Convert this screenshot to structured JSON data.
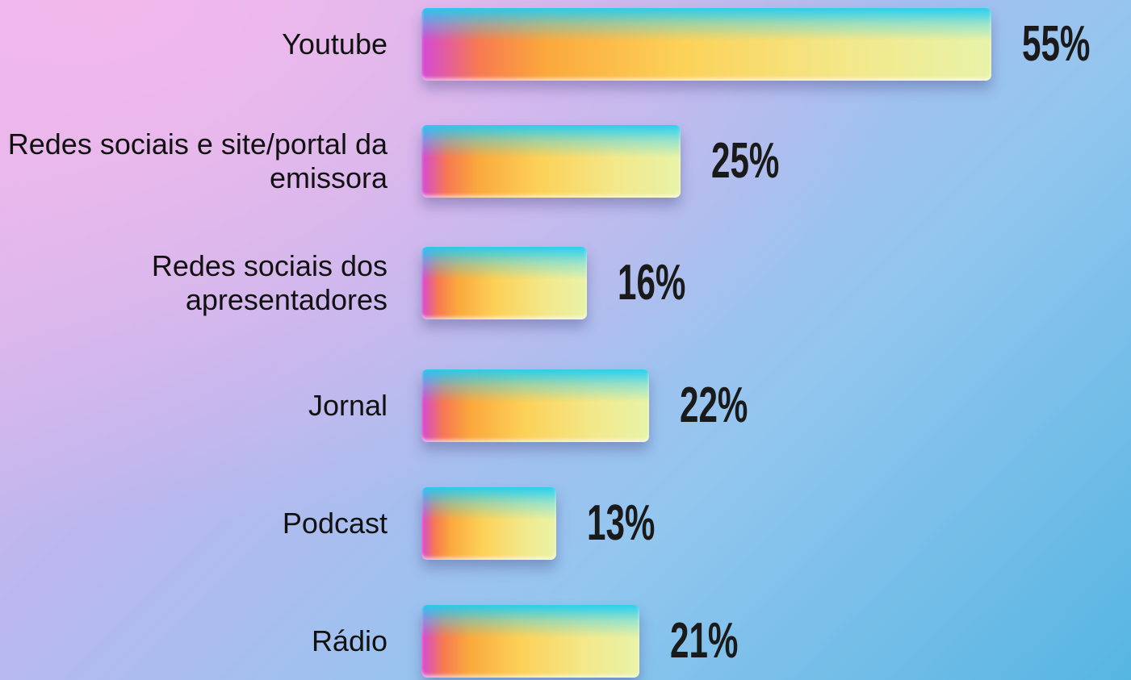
{
  "chart_data": {
    "type": "bar",
    "orientation": "horizontal",
    "categories": [
      "Youtube",
      "Redes sociais e site/portal da emissora",
      "Redes sociais dos apresentadores",
      "Jornal",
      "Podcast",
      "Rádio"
    ],
    "values": [
      55,
      25,
      16,
      22,
      13,
      21
    ],
    "value_labels": [
      "55%",
      "25%",
      "16%",
      "22%",
      "13%",
      "21%"
    ]
  }
}
